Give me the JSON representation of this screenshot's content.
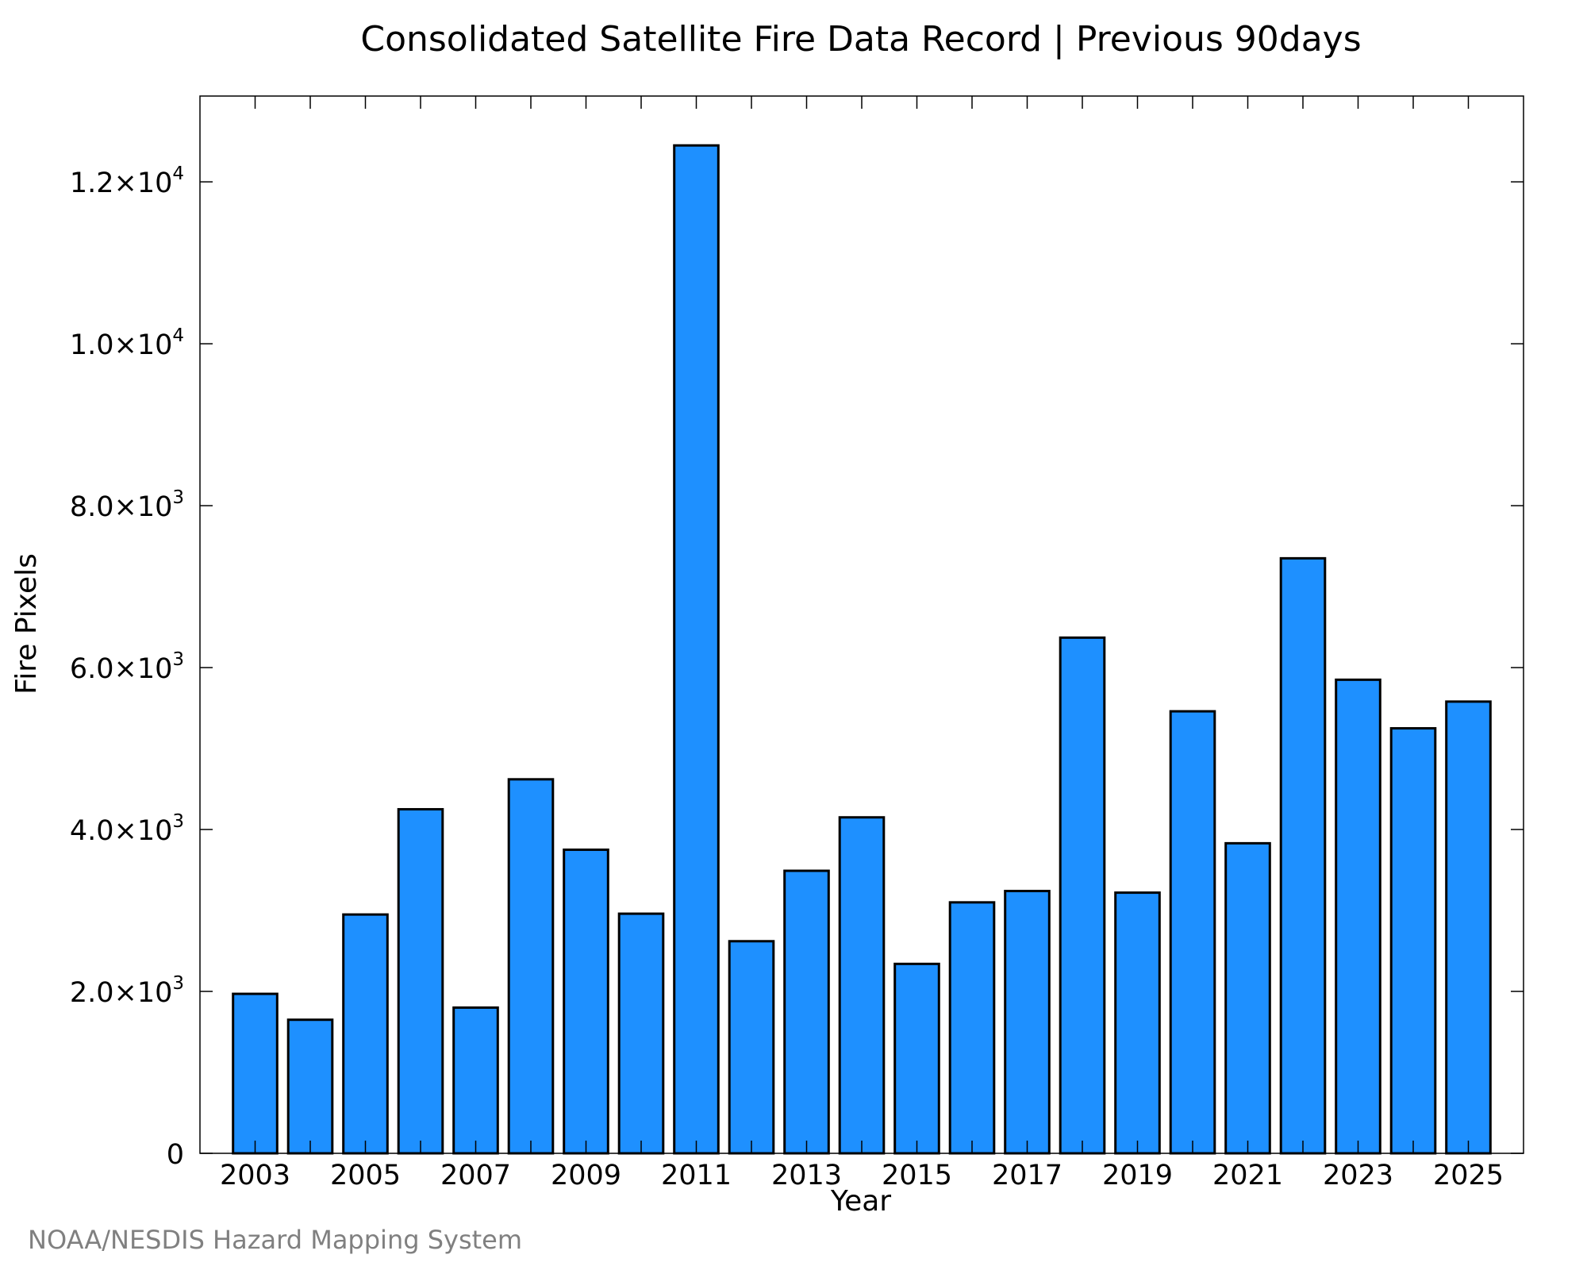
{
  "chart_data": {
    "type": "bar",
    "title": "Consolidated Satellite Fire Data Record | Previous 90days",
    "xlabel": "Year",
    "ylabel": "Fire Pixels",
    "categories": [
      "2003",
      "2004",
      "2005",
      "2006",
      "2007",
      "2008",
      "2009",
      "2010",
      "2011",
      "2012",
      "2013",
      "2014",
      "2015",
      "2016",
      "2017",
      "2018",
      "2019",
      "2020",
      "2021",
      "2022",
      "2023",
      "2024",
      "2025"
    ],
    "values": [
      1970,
      1650,
      2950,
      4250,
      1800,
      4620,
      3750,
      2960,
      12450,
      2620,
      3490,
      4150,
      2340,
      3100,
      3240,
      6370,
      3220,
      5460,
      3830,
      7350,
      5850,
      5250,
      5580
    ],
    "ylim": [
      0,
      13060
    ],
    "y_ticks": [
      {
        "value": 0,
        "mantissa": "0",
        "exp": ""
      },
      {
        "value": 2000,
        "mantissa": "2.0×10",
        "exp": "3"
      },
      {
        "value": 4000,
        "mantissa": "4.0×10",
        "exp": "3"
      },
      {
        "value": 6000,
        "mantissa": "6.0×10",
        "exp": "3"
      },
      {
        "value": 8000,
        "mantissa": "8.0×10",
        "exp": "3"
      },
      {
        "value": 10000,
        "mantissa": "1.0×10",
        "exp": "4"
      },
      {
        "value": 12000,
        "mantissa": "1.2×10",
        "exp": "4"
      }
    ],
    "x_tick_labels": [
      "2003",
      "2005",
      "2007",
      "2009",
      "2011",
      "2013",
      "2015",
      "2017",
      "2019",
      "2021",
      "2023",
      "2025"
    ],
    "bar_color": "#1e90ff",
    "grid": false,
    "legend": "none"
  },
  "credit": "NOAA/NESDIS Hazard Mapping System"
}
